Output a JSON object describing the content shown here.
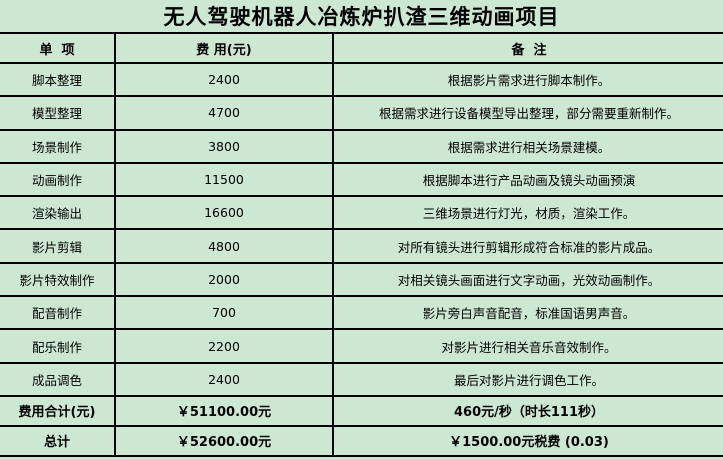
{
  "title": "无人驾驶机器人冶炼炉扒渣三维动画项目",
  "headers": [
    "单  项",
    "费 用(元)",
    "备  注"
  ],
  "rows": [
    {
      "item": "脚本整理",
      "cost": "2400",
      "note": "根据影片需求进行脚本制作。"
    },
    {
      "item": "模型整理",
      "cost": "4700",
      "note": "根据需求进行设备模型导出整理，部分需要重新制作。"
    },
    {
      "item": "场景制作",
      "cost": "3800",
      "note": "根据需求进行相关场景建模。"
    },
    {
      "item": "动画制作",
      "cost": "11500",
      "note": "根据脚本进行产品动画及镜头动画预演"
    },
    {
      "item": "渲染输出",
      "cost": "16600",
      "note": "三维场景进行灯光，材质，渲染工作。"
    },
    {
      "item": "影片剪辑",
      "cost": "4800",
      "note": "对所有镜头进行剪辑形成符合标准的影片成品。"
    },
    {
      "item": "影片特效制作",
      "cost": "2000",
      "note": "对相关镜头画面进行文字动画，光效动画制作。"
    },
    {
      "item": "配音制作",
      "cost": "700",
      "note": "影片旁白声音配音，标准国语男声音。"
    },
    {
      "item": "配乐制作",
      "cost": "2200",
      "note": "对影片进行相关音乐音效制作。"
    },
    {
      "item": "成品调色",
      "cost": "2400",
      "note": "最后对影片进行调色工作。"
    }
  ],
  "subtotal": {
    "label": "费用合计(元)",
    "cost": "￥51100.00元",
    "note": "460元/秒（时长111秒）"
  },
  "total": {
    "label": "总计",
    "cost": "￥52600.00元",
    "note": "￥1500.00元税费 (0.03)"
  },
  "colors": {
    "background": "#cde8d2",
    "border": "#000000"
  }
}
